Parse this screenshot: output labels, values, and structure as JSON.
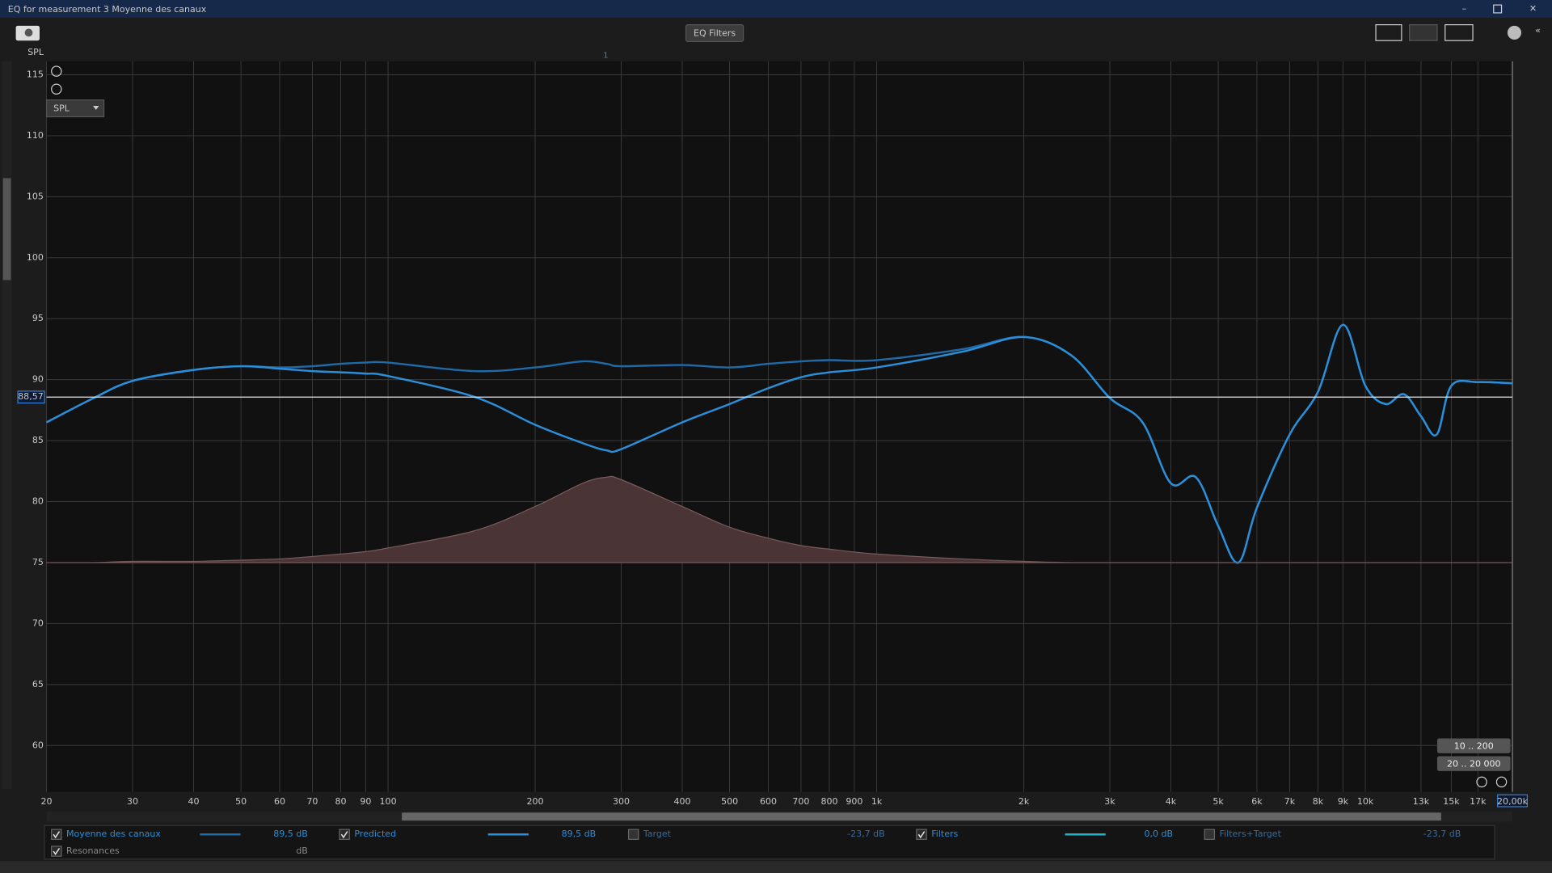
{
  "window": {
    "title": "EQ for measurement 3 Moyenne des canaux"
  },
  "toolbar": {
    "eq_filters": "EQ Filters",
    "marker": "1",
    "spl_dropdown": "SPL"
  },
  "range_buttons": [
    "10 .. 200",
    "20 .. 20 000"
  ],
  "chart_data": {
    "type": "line",
    "y_label": "SPL",
    "xscale": "log",
    "grid": true,
    "xlim": [
      20,
      20000
    ],
    "ylim": [
      56.2,
      116.1
    ],
    "yticks": [
      60,
      65,
      70,
      75,
      80,
      85,
      90,
      95,
      100,
      105,
      110,
      115
    ],
    "xticks": [
      20,
      30,
      40,
      50,
      60,
      70,
      80,
      90,
      100,
      200,
      300,
      400,
      500,
      600,
      700,
      800,
      900,
      {
        "value": 1000,
        "label": "1k"
      },
      {
        "value": 2000,
        "label": "2k"
      },
      {
        "value": 3000,
        "label": "3k"
      },
      {
        "value": 4000,
        "label": "4k"
      },
      {
        "value": 5000,
        "label": "5k"
      },
      {
        "value": 6000,
        "label": "6k"
      },
      {
        "value": 7000,
        "label": "7k"
      },
      {
        "value": 8000,
        "label": "8k"
      },
      {
        "value": 9000,
        "label": "9k"
      },
      {
        "value": 10000,
        "label": "10k"
      },
      {
        "value": 13000,
        "label": "13k"
      },
      {
        "value": 15000,
        "label": "15k"
      },
      {
        "value": 17000,
        "label": "17k"
      },
      {
        "value": 20000,
        "label": "20,00k"
      }
    ],
    "reference_line": {
      "value": 88.57,
      "label": "88,57"
    },
    "x": [
      20,
      25,
      30,
      40,
      50,
      60,
      70,
      80,
      90,
      100,
      150,
      200,
      250,
      280,
      300,
      400,
      500,
      600,
      700,
      800,
      1000,
      1500,
      2000,
      2500,
      3000,
      3500,
      4000,
      4500,
      5000,
      5500,
      6000,
      7000,
      8000,
      9000,
      10000,
      11000,
      12000,
      13000,
      14000,
      15000,
      17000,
      20000
    ],
    "series": [
      {
        "name": "Moyenne des canaux",
        "color": "#1f6aa8",
        "readout": "89,5 dB",
        "checked": true,
        "values": [
          86.5,
          88.5,
          89.9,
          90.8,
          91.1,
          91.0,
          91.1,
          91.3,
          91.4,
          91.4,
          90.7,
          91.0,
          91.5,
          91.3,
          91.1,
          91.2,
          91.0,
          91.3,
          91.5,
          91.6,
          91.6,
          92.5,
          93.5,
          92.0,
          88.5,
          86.5,
          81.5,
          82.0,
          78.0,
          75.0,
          79.5,
          85.5,
          89.0,
          94.5,
          89.5,
          88.0,
          88.8,
          87.0,
          85.5,
          89.5,
          89.8,
          89.7
        ]
      },
      {
        "name": "Predicted",
        "color": "#2a8fd8",
        "readout": "89,5 dB",
        "checked": true,
        "values": [
          86.5,
          88.5,
          89.9,
          90.8,
          91.1,
          90.9,
          90.7,
          90.6,
          90.5,
          90.3,
          88.6,
          86.3,
          84.8,
          84.2,
          84.3,
          86.5,
          88.0,
          89.3,
          90.2,
          90.6,
          91.0,
          92.3,
          93.5,
          92.0,
          88.5,
          86.5,
          81.5,
          82.0,
          78.0,
          75.0,
          79.5,
          85.5,
          89.0,
          94.5,
          89.5,
          88.0,
          88.8,
          87.0,
          85.5,
          89.5,
          89.8,
          89.7
        ]
      },
      {
        "name": "Filters",
        "color": "#1fb5c8",
        "fill": "#4a3435",
        "readout": "0,0 dB",
        "checked": true,
        "area": true,
        "values": [
          75.0,
          75.0,
          75.1,
          75.1,
          75.2,
          75.3,
          75.5,
          75.7,
          75.9,
          76.2,
          77.6,
          79.6,
          81.5,
          82.0,
          81.8,
          79.6,
          77.9,
          77.0,
          76.4,
          76.1,
          75.7,
          75.3,
          75.1,
          75.0,
          75.0,
          75.0,
          75.0,
          75.0,
          75.0,
          75.0,
          75.0,
          75.0,
          75.0,
          75.0,
          75.0,
          75.0,
          75.0,
          75.0,
          75.0,
          75.0,
          75.0,
          75.0
        ]
      }
    ],
    "other_traces": [
      {
        "name": "Target",
        "readout": "-23,7 dB",
        "checked": false
      },
      {
        "name": "Filters+Target",
        "readout": "-23,7 dB",
        "checked": false
      },
      {
        "name": "Resonances",
        "readout": "dB",
        "checked": true
      }
    ]
  }
}
